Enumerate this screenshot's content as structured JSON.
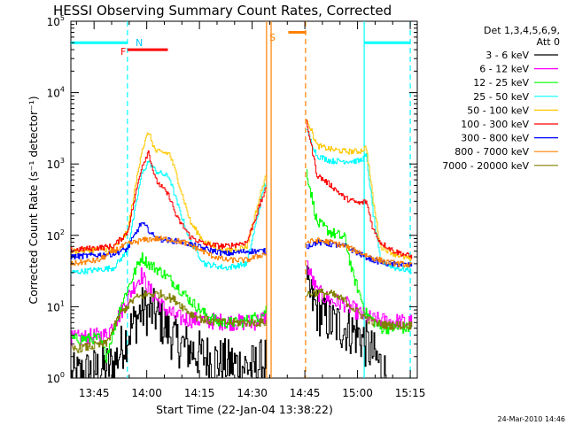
{
  "chart_data": {
    "type": "line",
    "title": "HESSI Observing Summary Count Rates, Corrected",
    "xlabel": "Start Time (22-Jan-04 13:38:22)",
    "ylabel": "Corrected Count Rate (s⁻¹ detector⁻¹)",
    "y_scale": "log",
    "ylim": [
      1,
      100000
    ],
    "xlim": [
      "13:38:22",
      "15:17:00"
    ],
    "x_unit": "minutes after 13:38:22",
    "x_ticks": [
      {
        "label": "13:45",
        "value": 6.6
      },
      {
        "label": "14:00",
        "value": 21.6
      },
      {
        "label": "14:15",
        "value": 36.6
      },
      {
        "label": "14:30",
        "value": 51.6
      },
      {
        "label": "14:45",
        "value": 66.6
      },
      {
        "label": "15:00",
        "value": 81.6
      },
      {
        "label": "15:15",
        "value": 96.6
      }
    ],
    "y_ticks": [
      {
        "label": "10",
        "exp": "0",
        "value": 1
      },
      {
        "label": "10",
        "exp": "1",
        "value": 10
      },
      {
        "label": "10",
        "exp": "2",
        "value": 100
      },
      {
        "label": "10",
        "exp": "3",
        "value": 1000
      },
      {
        "label": "10",
        "exp": "4",
        "value": 10000
      },
      {
        "label": "10",
        "exp": "5",
        "value": 100000
      }
    ],
    "legend_header": [
      "Det 1,3,4,5,6,9,",
      "Att 0"
    ],
    "legend_position": "right-outside",
    "footer_date": "24-Mar-2010 14:46",
    "gaps": [
      [
        55.5,
        67.0
      ]
    ],
    "series": [
      {
        "name": "3 - 6 keV",
        "color": "#000000",
        "x": [
          0,
          12,
          16,
          20,
          24,
          30,
          36,
          42,
          48,
          52,
          55,
          67,
          70,
          74,
          78,
          82,
          85,
          88,
          90
        ],
        "y": [
          1.0,
          1.5,
          4,
          9,
          8,
          3.2,
          2.2,
          1.7,
          1.5,
          1.4,
          1.7,
          18,
          9,
          6,
          5,
          4,
          2.5,
          1.5,
          1.0
        ]
      },
      {
        "name": "6 - 12 keV",
        "color": "#ff00ff",
        "x": [
          0,
          10,
          14,
          18,
          20,
          22,
          26,
          30,
          36,
          42,
          48,
          52,
          55,
          67,
          70,
          74,
          78,
          82,
          86,
          92,
          97
        ],
        "y": [
          3.5,
          4,
          8,
          20,
          28,
          18,
          10,
          7,
          6.5,
          6.2,
          6,
          6,
          7,
          40,
          16,
          12,
          11,
          8,
          6.5,
          6.2,
          6
        ]
      },
      {
        "name": "12 - 25 keV",
        "color": "#00ff00",
        "x": [
          0,
          8,
          10,
          14,
          18,
          20,
          22,
          26,
          30,
          34,
          38,
          42,
          48,
          52,
          55,
          67,
          70,
          74,
          78,
          80,
          84,
          88,
          92,
          97
        ],
        "y": [
          3.5,
          3.6,
          2,
          10,
          30,
          50,
          40,
          30,
          20,
          12,
          8,
          6,
          6,
          7,
          8,
          800,
          150,
          110,
          90,
          30,
          8,
          5,
          5,
          5
        ]
      },
      {
        "name": "25 - 50 keV",
        "color": "#00ffff",
        "x": [
          0,
          12,
          16,
          20,
          22,
          24,
          28,
          30,
          34,
          38,
          44,
          50,
          55,
          67,
          70,
          74,
          78,
          82,
          84,
          86,
          88,
          92,
          97
        ],
        "y": [
          30,
          35,
          60,
          700,
          1100,
          800,
          650,
          300,
          80,
          40,
          35,
          40,
          500,
          3000,
          1300,
          1100,
          1100,
          1100,
          1300,
          200,
          45,
          35,
          32
        ]
      },
      {
        "name": "50 - 100 keV",
        "color": "#ffc800",
        "x": [
          0,
          12,
          16,
          20,
          22,
          24,
          28,
          30,
          34,
          38,
          44,
          50,
          55,
          67,
          70,
          74,
          78,
          82,
          84,
          86,
          88,
          92,
          97
        ],
        "y": [
          60,
          65,
          110,
          1500,
          2800,
          1500,
          1400,
          700,
          150,
          80,
          60,
          70,
          600,
          4500,
          1800,
          1600,
          1500,
          1500,
          1700,
          300,
          70,
          55,
          45
        ]
      },
      {
        "name": "100 - 300 keV",
        "color": "#ff0000",
        "x": [
          0,
          12,
          16,
          20,
          22,
          24,
          28,
          30,
          34,
          38,
          44,
          50,
          55,
          67,
          70,
          74,
          78,
          82,
          84,
          86,
          88,
          92,
          97
        ],
        "y": [
          62,
          70,
          110,
          900,
          1500,
          600,
          350,
          180,
          95,
          75,
          70,
          80,
          400,
          4000,
          700,
          500,
          330,
          280,
          300,
          120,
          80,
          60,
          50
        ]
      },
      {
        "name": "300 - 800 keV",
        "color": "#0000ff",
        "x": [
          0,
          12,
          16,
          20,
          22,
          24,
          28,
          32,
          38,
          44,
          50,
          55,
          67,
          70,
          74,
          78,
          82,
          86,
          90,
          97
        ],
        "y": [
          50,
          55,
          65,
          150,
          120,
          90,
          85,
          80,
          65,
          55,
          60,
          60,
          70,
          80,
          75,
          70,
          55,
          45,
          40,
          38
        ]
      },
      {
        "name": "800 - 7000 keV",
        "color": "#ff8000",
        "x": [
          0,
          8,
          12,
          16,
          20,
          24,
          28,
          32,
          36,
          40,
          44,
          50,
          55,
          67,
          70,
          74,
          78,
          82,
          86,
          90,
          97
        ],
        "y": [
          40,
          45,
          60,
          75,
          85,
          90,
          88,
          80,
          65,
          52,
          45,
          45,
          55,
          80,
          85,
          80,
          70,
          58,
          48,
          42,
          38
        ]
      },
      {
        "name": "7000 - 20000 keV",
        "color": "#808000",
        "x": [
          0,
          10,
          14,
          18,
          22,
          26,
          30,
          34,
          38,
          42,
          48,
          55,
          67,
          70,
          74,
          78,
          82,
          86,
          90,
          97
        ],
        "y": [
          2.5,
          3,
          8,
          13,
          15,
          15,
          12,
          8,
          6.5,
          6,
          6,
          6,
          15,
          16,
          15,
          12,
          8,
          6,
          5.5,
          5.5
        ]
      }
    ],
    "annotations": [
      {
        "text": "F",
        "color": "#ff0000"
      },
      {
        "text": "N",
        "color": "#00c8ff"
      },
      {
        "text": "S",
        "color": "#ff8000"
      }
    ],
    "flag_bars": [
      {
        "label": "F",
        "color": "#ff0000",
        "x0": 16.1,
        "x1": 27.6,
        "y": 40000
      },
      {
        "label": "S",
        "color": "#ff8000",
        "x0": 61.9,
        "x1": 67.0,
        "y": 70000
      },
      {
        "label": "cyan-left",
        "color": "#00ffff",
        "x0": 0,
        "x1": 16.1,
        "y": 50000
      },
      {
        "label": "cyan-right",
        "color": "#00ffff",
        "x0": 83.5,
        "x1": 96.6,
        "y": 50000
      }
    ],
    "vlines": [
      {
        "x": 16.1,
        "color": "#00ffff",
        "style": "dashed"
      },
      {
        "x": 96.6,
        "color": "#00ffff",
        "style": "dashed"
      },
      {
        "x": 83.5,
        "color": "#00ffff",
        "style": "solid"
      },
      {
        "x": 55.7,
        "color": "#ff8000",
        "style": "solid"
      },
      {
        "x": 57.0,
        "color": "#ff8000",
        "style": "solid"
      },
      {
        "x": 66.8,
        "color": "#ff8000",
        "style": "dashed"
      }
    ]
  }
}
